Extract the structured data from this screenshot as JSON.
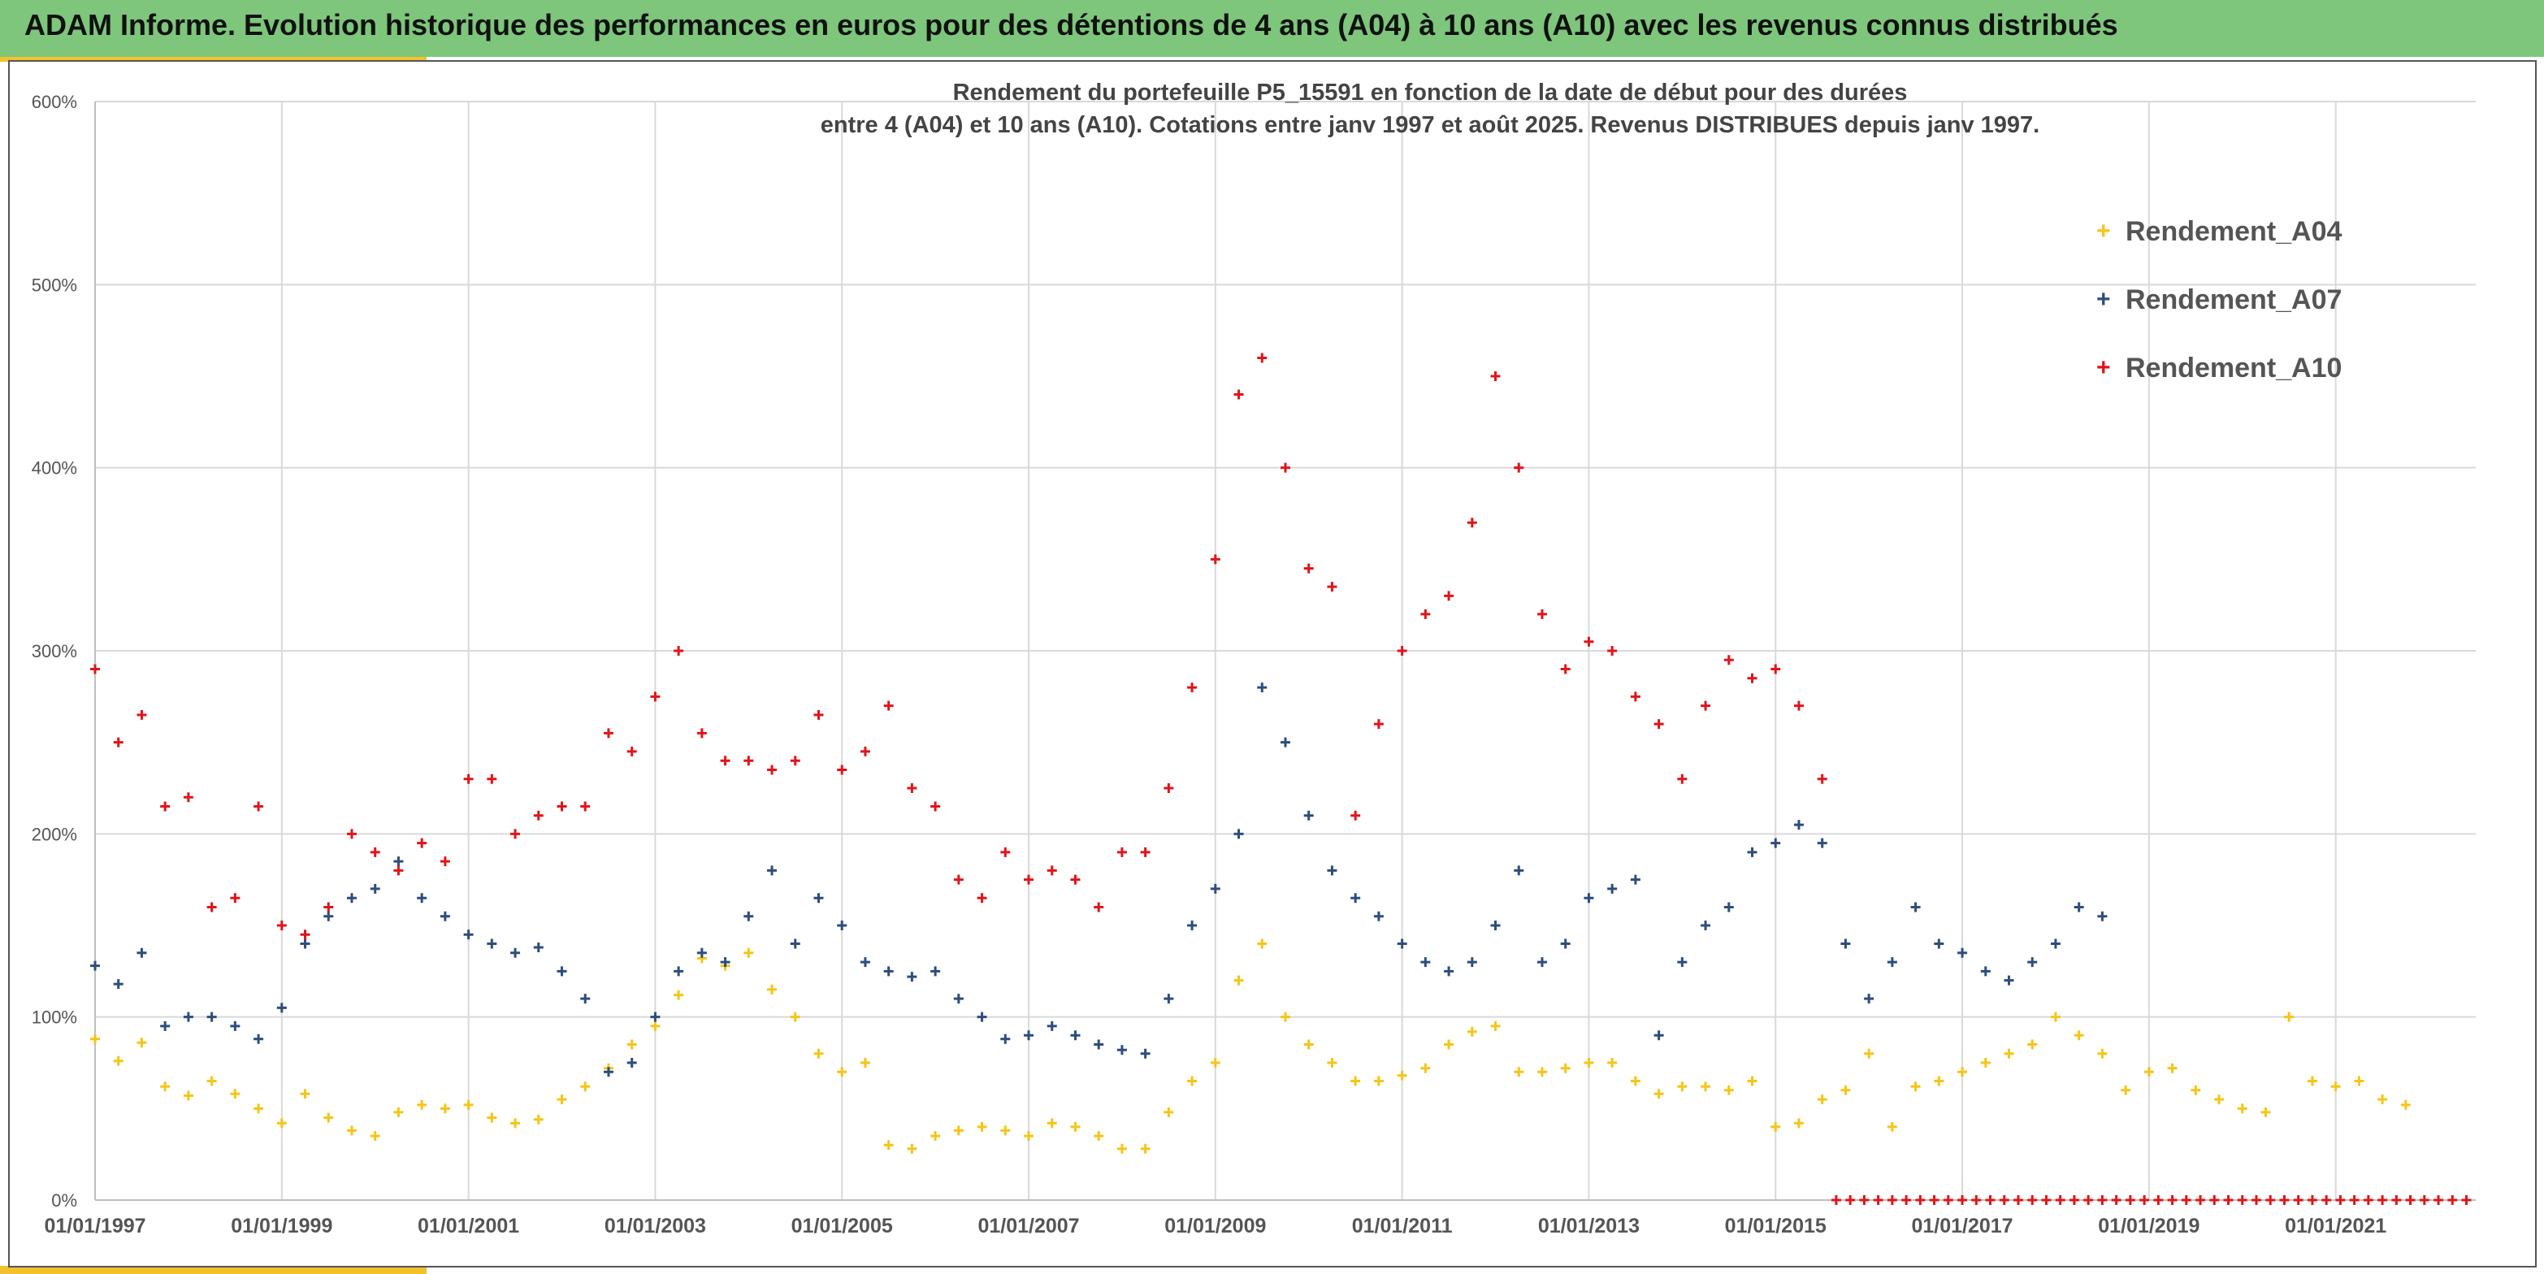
{
  "header": {
    "title": "ADAM Informe. Evolution historique des performances en euros pour des détentions de 4 ans (A04) à 10 ans (A10) avec les revenus connus distribués"
  },
  "chart_data": {
    "type": "scatter",
    "title": "Rendement du portefeuille P5_15591 en fonction de la date de début pour des durées",
    "subtitle": "entre 4 (A04) et 10 ans (A10). Cotations entre janv 1997 et août 2025. Revenus DISTRIBUES depuis janv 1997.",
    "xlabel": "",
    "ylabel": "",
    "x_range": [
      1997.0,
      2022.5
    ],
    "ylim": [
      0,
      600
    ],
    "grid": true,
    "legend_position": "top-right",
    "x_ticks": [
      "01/01/1997",
      "01/01/1999",
      "01/01/2001",
      "01/01/2003",
      "01/01/2005",
      "01/01/2007",
      "01/01/2009",
      "01/01/2011",
      "01/01/2013",
      "01/01/2015",
      "01/01/2017",
      "01/01/2019",
      "01/01/2021"
    ],
    "x_tick_values": [
      1997,
      1999,
      2001,
      2003,
      2005,
      2007,
      2009,
      2011,
      2013,
      2015,
      2017,
      2019,
      2021
    ],
    "y_ticks": [
      "0%",
      "100%",
      "200%",
      "300%",
      "400%",
      "500%",
      "600%"
    ],
    "y_tick_values": [
      0,
      100,
      200,
      300,
      400,
      500,
      600
    ],
    "series": [
      {
        "name": "Rendement_A04",
        "color": "#f5c518",
        "marker": "+",
        "x": [
          1997.0,
          1997.25,
          1997.5,
          1997.75,
          1998.0,
          1998.25,
          1998.5,
          1998.75,
          1999.0,
          1999.25,
          1999.5,
          1999.75,
          2000.0,
          2000.25,
          2000.5,
          2000.75,
          2001.0,
          2001.25,
          2001.5,
          2001.75,
          2002.0,
          2002.25,
          2002.5,
          2002.75,
          2003.0,
          2003.25,
          2003.5,
          2003.75,
          2004.0,
          2004.25,
          2004.5,
          2004.75,
          2005.0,
          2005.25,
          2005.5,
          2005.75,
          2006.0,
          2006.25,
          2006.5,
          2006.75,
          2007.0,
          2007.25,
          2007.5,
          2007.75,
          2008.0,
          2008.25,
          2008.5,
          2008.75,
          2009.0,
          2009.25,
          2009.5,
          2009.75,
          2010.0,
          2010.25,
          2010.5,
          2010.75,
          2011.0,
          2011.25,
          2011.5,
          2011.75,
          2012.0,
          2012.25,
          2012.5,
          2012.75,
          2013.0,
          2013.25,
          2013.5,
          2013.75,
          2014.0,
          2014.25,
          2014.5,
          2014.75,
          2015.0,
          2015.25,
          2015.5,
          2015.75,
          2016.0,
          2016.25,
          2016.5,
          2016.75,
          2017.0,
          2017.25,
          2017.5,
          2017.75,
          2018.0,
          2018.25,
          2018.5,
          2018.75,
          2019.0,
          2019.25,
          2019.5,
          2019.75,
          2020.0,
          2020.25,
          2020.5,
          2020.75,
          2021.0,
          2021.25,
          2021.5,
          2021.75
        ],
        "y": [
          88,
          76,
          86,
          62,
          57,
          65,
          58,
          50,
          42,
          58,
          45,
          38,
          35,
          48,
          52,
          50,
          52,
          45,
          42,
          44,
          55,
          62,
          72,
          85,
          95,
          112,
          132,
          128,
          135,
          115,
          100,
          80,
          70,
          75,
          30,
          28,
          35,
          38,
          40,
          38,
          35,
          42,
          40,
          35,
          28,
          28,
          48,
          65,
          75,
          120,
          140,
          100,
          85,
          75,
          65,
          65,
          68,
          72,
          85,
          92,
          95,
          70,
          70,
          72,
          75,
          75,
          65,
          58,
          62,
          62,
          60,
          65,
          40,
          42,
          55,
          60,
          80,
          40,
          62,
          65,
          70,
          75,
          80,
          85,
          100,
          90,
          80,
          60,
          70,
          72,
          60,
          55,
          50,
          48,
          100,
          65,
          62,
          65,
          55,
          52
        ]
      },
      {
        "name": "Rendement_A07",
        "color": "#2e4d7b",
        "marker": "+",
        "x": [
          1997.0,
          1997.25,
          1997.5,
          1997.75,
          1998.0,
          1998.25,
          1998.5,
          1998.75,
          1999.0,
          1999.25,
          1999.5,
          1999.75,
          2000.0,
          2000.25,
          2000.5,
          2000.75,
          2001.0,
          2001.25,
          2001.5,
          2001.75,
          2002.0,
          2002.25,
          2002.5,
          2002.75,
          2003.0,
          2003.25,
          2003.5,
          2003.75,
          2004.0,
          2004.25,
          2004.5,
          2004.75,
          2005.0,
          2005.25,
          2005.5,
          2005.75,
          2006.0,
          2006.25,
          2006.5,
          2006.75,
          2007.0,
          2007.25,
          2007.5,
          2007.75,
          2008.0,
          2008.25,
          2008.5,
          2008.75,
          2009.0,
          2009.25,
          2009.5,
          2009.75,
          2010.0,
          2010.25,
          2010.5,
          2010.75,
          2011.0,
          2011.25,
          2011.5,
          2011.75,
          2012.0,
          2012.25,
          2012.5,
          2012.75,
          2013.0,
          2013.25,
          2013.5,
          2013.75,
          2014.0,
          2014.25,
          2014.5,
          2014.75,
          2015.0,
          2015.25,
          2015.5,
          2015.75,
          2016.0,
          2016.25,
          2016.5,
          2016.75,
          2017.0,
          2017.25,
          2017.5,
          2017.75,
          2018.0,
          2018.25,
          2018.5
        ],
        "y": [
          128,
          118,
          135,
          95,
          100,
          100,
          95,
          88,
          105,
          140,
          155,
          165,
          170,
          185,
          165,
          155,
          145,
          140,
          135,
          138,
          125,
          110,
          70,
          75,
          100,
          125,
          135,
          130,
          155,
          180,
          140,
          165,
          150,
          130,
          125,
          122,
          125,
          110,
          100,
          88,
          90,
          95,
          90,
          85,
          82,
          80,
          110,
          150,
          170,
          200,
          280,
          250,
          210,
          180,
          165,
          155,
          140,
          130,
          125,
          130,
          150,
          180,
          130,
          140,
          165,
          170,
          175,
          90,
          130,
          150,
          160,
          190,
          195,
          205,
          195,
          140,
          110,
          130,
          160,
          140,
          135,
          125,
          120,
          130,
          140,
          160,
          155
        ]
      },
      {
        "name": "Rendement_A10",
        "color": "#e0151b",
        "marker": "+",
        "x": [
          1997.0,
          1997.25,
          1997.5,
          1997.75,
          1998.0,
          1998.25,
          1998.5,
          1998.75,
          1999.0,
          1999.25,
          1999.5,
          1999.75,
          2000.0,
          2000.25,
          2000.5,
          2000.75,
          2001.0,
          2001.25,
          2001.5,
          2001.75,
          2002.0,
          2002.25,
          2002.5,
          2002.75,
          2003.0,
          2003.25,
          2003.5,
          2003.75,
          2004.0,
          2004.25,
          2004.5,
          2004.75,
          2005.0,
          2005.25,
          2005.5,
          2005.75,
          2006.0,
          2006.25,
          2006.5,
          2006.75,
          2007.0,
          2007.25,
          2007.5,
          2007.75,
          2008.0,
          2008.25,
          2008.5,
          2008.75,
          2009.0,
          2009.25,
          2009.5,
          2009.75,
          2010.0,
          2010.25,
          2010.5,
          2010.75,
          2011.0,
          2011.25,
          2011.5,
          2011.75,
          2012.0,
          2012.25,
          2012.5,
          2012.75,
          2013.0,
          2013.25,
          2013.5,
          2013.75,
          2014.0,
          2014.25,
          2014.5,
          2014.75,
          2015.0,
          2015.25,
          2015.5
        ],
        "y": [
          290,
          250,
          265,
          215,
          220,
          160,
          165,
          215,
          150,
          145,
          160,
          200,
          190,
          180,
          195,
          185,
          230,
          230,
          200,
          210,
          215,
          215,
          255,
          245,
          275,
          300,
          255,
          240,
          240,
          235,
          240,
          265,
          235,
          245,
          270,
          225,
          215,
          175,
          165,
          190,
          175,
          180,
          175,
          160,
          190,
          190,
          225,
          280,
          350,
          440,
          460,
          400,
          345,
          335,
          210,
          260,
          300,
          320,
          330,
          370,
          450,
          400,
          320,
          290,
          305,
          300,
          275,
          260,
          230,
          270,
          295,
          285,
          290,
          270,
          230
        ]
      },
      {
        "name": "",
        "color": "#e0151b",
        "marker": "+",
        "x": [
          2015.65,
          2015.8,
          2015.95,
          2016.1,
          2016.25,
          2016.4,
          2016.55,
          2016.7,
          2016.85,
          2017.0,
          2017.15,
          2017.3,
          2017.45,
          2017.6,
          2017.75,
          2017.9,
          2018.05,
          2018.2,
          2018.35,
          2018.5,
          2018.65,
          2018.8,
          2018.95,
          2019.1,
          2019.25,
          2019.4,
          2019.55,
          2019.7,
          2019.85,
          2020.0,
          2020.15,
          2020.3,
          2020.45,
          2020.6,
          2020.75,
          2020.9,
          2021.05,
          2021.2,
          2021.35,
          2021.5,
          2021.65,
          2021.8,
          2021.95,
          2022.1,
          2022.25,
          2022.4
        ],
        "y": [
          0,
          0,
          0,
          0,
          0,
          0,
          0,
          0,
          0,
          0,
          0,
          0,
          0,
          0,
          0,
          0,
          0,
          0,
          0,
          0,
          0,
          0,
          0,
          0,
          0,
          0,
          0,
          0,
          0,
          0,
          0,
          0,
          0,
          0,
          0,
          0,
          0,
          0,
          0,
          0,
          0,
          0,
          0,
          0,
          0,
          0
        ]
      }
    ]
  }
}
